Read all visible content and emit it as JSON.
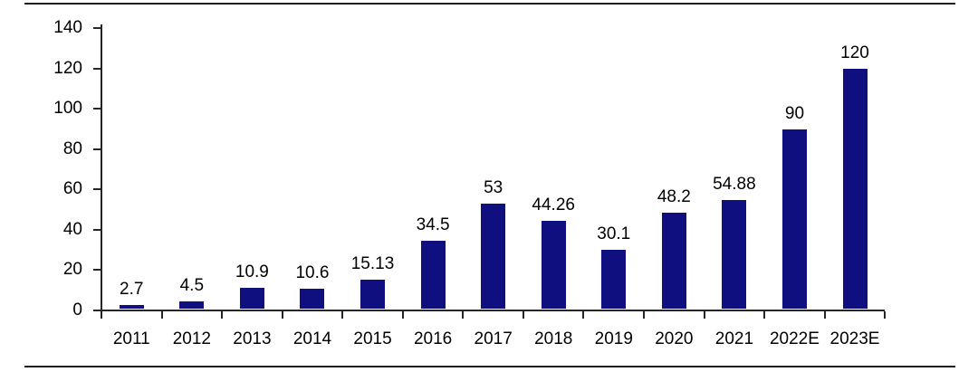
{
  "chart_data": {
    "type": "bar",
    "title": "",
    "xlabel": "",
    "ylabel": "",
    "categories": [
      "2011",
      "2012",
      "2013",
      "2014",
      "2015",
      "2016",
      "2017",
      "2018",
      "2019",
      "2020",
      "2021",
      "2022E",
      "2023E"
    ],
    "values": [
      2.7,
      4.5,
      10.9,
      10.6,
      15.13,
      34.5,
      53,
      44.26,
      30.1,
      48.2,
      54.88,
      90,
      120
    ],
    "data_labels": [
      "2.7",
      "4.5",
      "10.9",
      "10.6",
      "15.13",
      "34.5",
      "53",
      "44.26",
      "30.1",
      "48.2",
      "54.88",
      "90",
      "120"
    ],
    "yticks": [
      0,
      20,
      40,
      60,
      80,
      100,
      120,
      140
    ],
    "ylim": [
      0,
      140
    ],
    "grid": false,
    "legend": "none",
    "bar_color": "#0f0f80",
    "axis_color": "#262626",
    "text_color": "#000000"
  }
}
